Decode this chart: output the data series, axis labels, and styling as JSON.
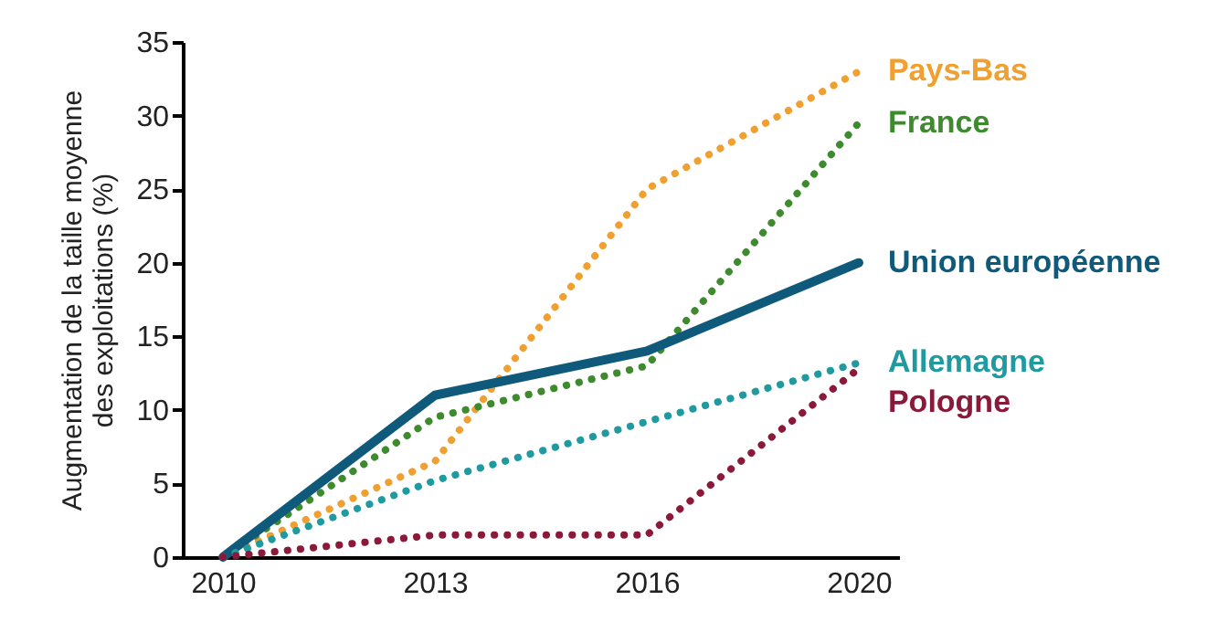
{
  "chart_data": {
    "type": "line",
    "ylabel": "Augmentation de la taille moyenne des exploitations (%)",
    "categories": [
      "2010",
      "2013",
      "2016",
      "2020"
    ],
    "ylim": [
      0,
      35
    ],
    "yticks": [
      0,
      5,
      10,
      15,
      20,
      25,
      30,
      35
    ],
    "series": [
      {
        "name": "Pays-Bas",
        "color": "#f0a030",
        "line_style": "dotted",
        "values": [
          0,
          6.5,
          25,
          33
        ]
      },
      {
        "name": "France",
        "color": "#3e8a2e",
        "line_style": "dotted",
        "values": [
          0,
          9.5,
          13,
          29.5
        ]
      },
      {
        "name": "Union européenne",
        "color": "#0f5a7a",
        "line_style": "solid",
        "values": [
          0,
          11,
          14,
          20
        ]
      },
      {
        "name": "Allemagne",
        "color": "#1f9aa0",
        "line_style": "dotted",
        "values": [
          0,
          5.2,
          9.2,
          13.2
        ]
      },
      {
        "name": "Pologne",
        "color": "#8b1a3a",
        "line_style": "dotted",
        "values": [
          0,
          1.5,
          1.5,
          12.8
        ]
      }
    ]
  }
}
